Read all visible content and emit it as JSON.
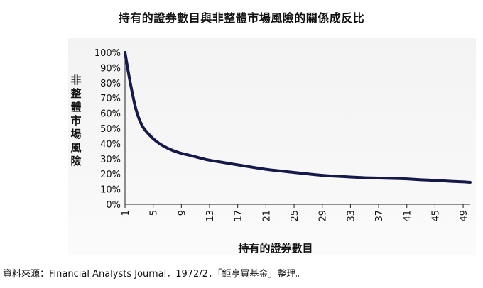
{
  "chart_data": {
    "type": "line",
    "title": "持有的證券數目與非整體市場風險的關係成反比",
    "xlabel": "持有的證券數目",
    "ylabel": "非整體市場風險",
    "x_ticks": [
      "1",
      "5",
      "9",
      "13",
      "17",
      "21",
      "25",
      "29",
      "33",
      "37",
      "41",
      "45",
      "49"
    ],
    "y_ticks": [
      "0%",
      "10%",
      "20%",
      "30%",
      "40%",
      "50%",
      "60%",
      "70%",
      "80%",
      "90%",
      "100%"
    ],
    "xlim": [
      1,
      50
    ],
    "ylim": [
      0,
      100
    ],
    "grid": false,
    "line_color": "#14194a",
    "series": [
      {
        "x": [
          1,
          1.5,
          2,
          2.5,
          3,
          3.5,
          4,
          5,
          6,
          7,
          8,
          9,
          10,
          12,
          13,
          15,
          17,
          19,
          21,
          23,
          25,
          27,
          29,
          31,
          33,
          35,
          37,
          39,
          41,
          43,
          45,
          47,
          49,
          50
        ],
        "y": [
          100,
          86,
          74,
          63,
          56,
          51,
          48,
          43,
          39.5,
          37,
          35,
          33.5,
          32.5,
          30,
          29,
          27.5,
          26,
          24.5,
          23,
          22,
          21,
          20,
          19,
          18.5,
          18,
          17.5,
          17.3,
          17,
          16.8,
          16.2,
          15.8,
          15.2,
          14.8,
          14.5
        ]
      }
    ]
  },
  "footer": {
    "source": "資料來源：Financial Analysts Journal，1972/2，「鉅亨買基金」整理。"
  }
}
